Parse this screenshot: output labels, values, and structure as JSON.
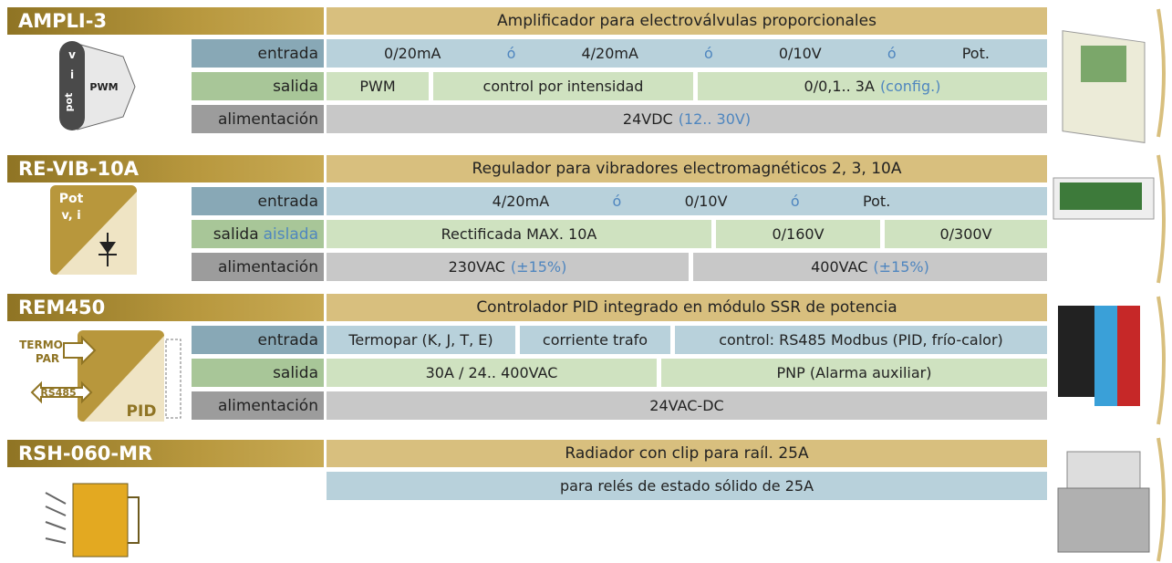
{
  "products": [
    {
      "name": "AMPLI-3",
      "description": "Amplificador para electroválvulas proporcionales",
      "icon_texts": [
        "v",
        "i",
        "pot",
        "PWM"
      ],
      "rows": [
        {
          "label": [
            {
              "text": "entrada"
            }
          ],
          "cells": [
            [
              {
                "text": "0/20mA"
              },
              {
                "text": "ó",
                "accent": true
              },
              {
                "text": "4/20mA"
              },
              {
                "text": "ó",
                "accent": true
              },
              {
                "text": "0/10V"
              },
              {
                "text": "ó",
                "accent": true
              },
              {
                "text": "Pot."
              }
            ]
          ]
        },
        {
          "label": [
            {
              "text": "salida"
            }
          ],
          "cells": [
            [
              {
                "text": "PWM"
              }
            ],
            [
              {
                "text": "control por intensidad"
              }
            ],
            [
              {
                "text": "0/0,1.. 3A"
              },
              {
                "text": "(config.)",
                "accent": true
              }
            ]
          ]
        },
        {
          "label": [
            {
              "text": "alimentación"
            }
          ],
          "cells": [
            [
              {
                "text": "24VDC"
              },
              {
                "text": "(12.. 30V)",
                "accent": true
              }
            ]
          ]
        }
      ]
    },
    {
      "name": "RE-VIB-10A",
      "description": "Regulador para vibradores electromagnéticos 2, 3, 10A",
      "icon_texts": [
        "Pot",
        "v, i"
      ],
      "rows": [
        {
          "label": [
            {
              "text": "entrada"
            }
          ],
          "cells": [
            [
              {
                "text": "4/20mA"
              },
              {
                "text": "ó",
                "accent": true
              },
              {
                "text": "0/10V"
              },
              {
                "text": "ó",
                "accent": true
              },
              {
                "text": "Pot."
              }
            ]
          ]
        },
        {
          "label": [
            {
              "text": "salida"
            },
            {
              "text": "aislada",
              "accent": true
            }
          ],
          "cells": [
            [
              {
                "text": "Rectificada MAX. 10A"
              }
            ],
            [
              {
                "text": "0/160V"
              }
            ],
            [
              {
                "text": "0/300V"
              }
            ]
          ]
        },
        {
          "label": [
            {
              "text": "alimentación"
            }
          ],
          "cells": [
            [
              {
                "text": "230VAC"
              },
              {
                "text": "(±15%)",
                "accent": true
              }
            ],
            [
              {
                "text": "400VAC"
              },
              {
                "text": "(±15%)",
                "accent": true
              }
            ]
          ]
        }
      ]
    },
    {
      "name": "REM450",
      "description": "Controlador PID integrado en módulo SSR de potencia",
      "icon_texts": [
        "TERMO",
        "PAR",
        "RS485",
        "PID"
      ],
      "rows": [
        {
          "label": [
            {
              "text": "entrada"
            }
          ],
          "cells": [
            [
              {
                "text": "Termopar (K, J, T, E)"
              }
            ],
            [
              {
                "text": "corriente trafo"
              }
            ],
            [
              {
                "text": "control: RS485 Modbus (PID, frío-calor)"
              }
            ]
          ]
        },
        {
          "label": [
            {
              "text": "salida"
            }
          ],
          "cells": [
            [
              {
                "text": "30A / 24.. 400VAC"
              }
            ],
            [
              {
                "text": "PNP (Alarma auxiliar)"
              }
            ]
          ]
        },
        {
          "label": [
            {
              "text": "alimentación"
            }
          ],
          "cells": [
            [
              {
                "text": "24VAC-DC"
              }
            ]
          ]
        }
      ]
    },
    {
      "name": "RSH-060-MR",
      "description": "Radiador con clip para raíl. 25A",
      "icon_texts": [],
      "rows": [
        {
          "cells": [
            [
              {
                "text": "para relés de estado sólido de 25A"
              }
            ]
          ]
        }
      ]
    }
  ]
}
